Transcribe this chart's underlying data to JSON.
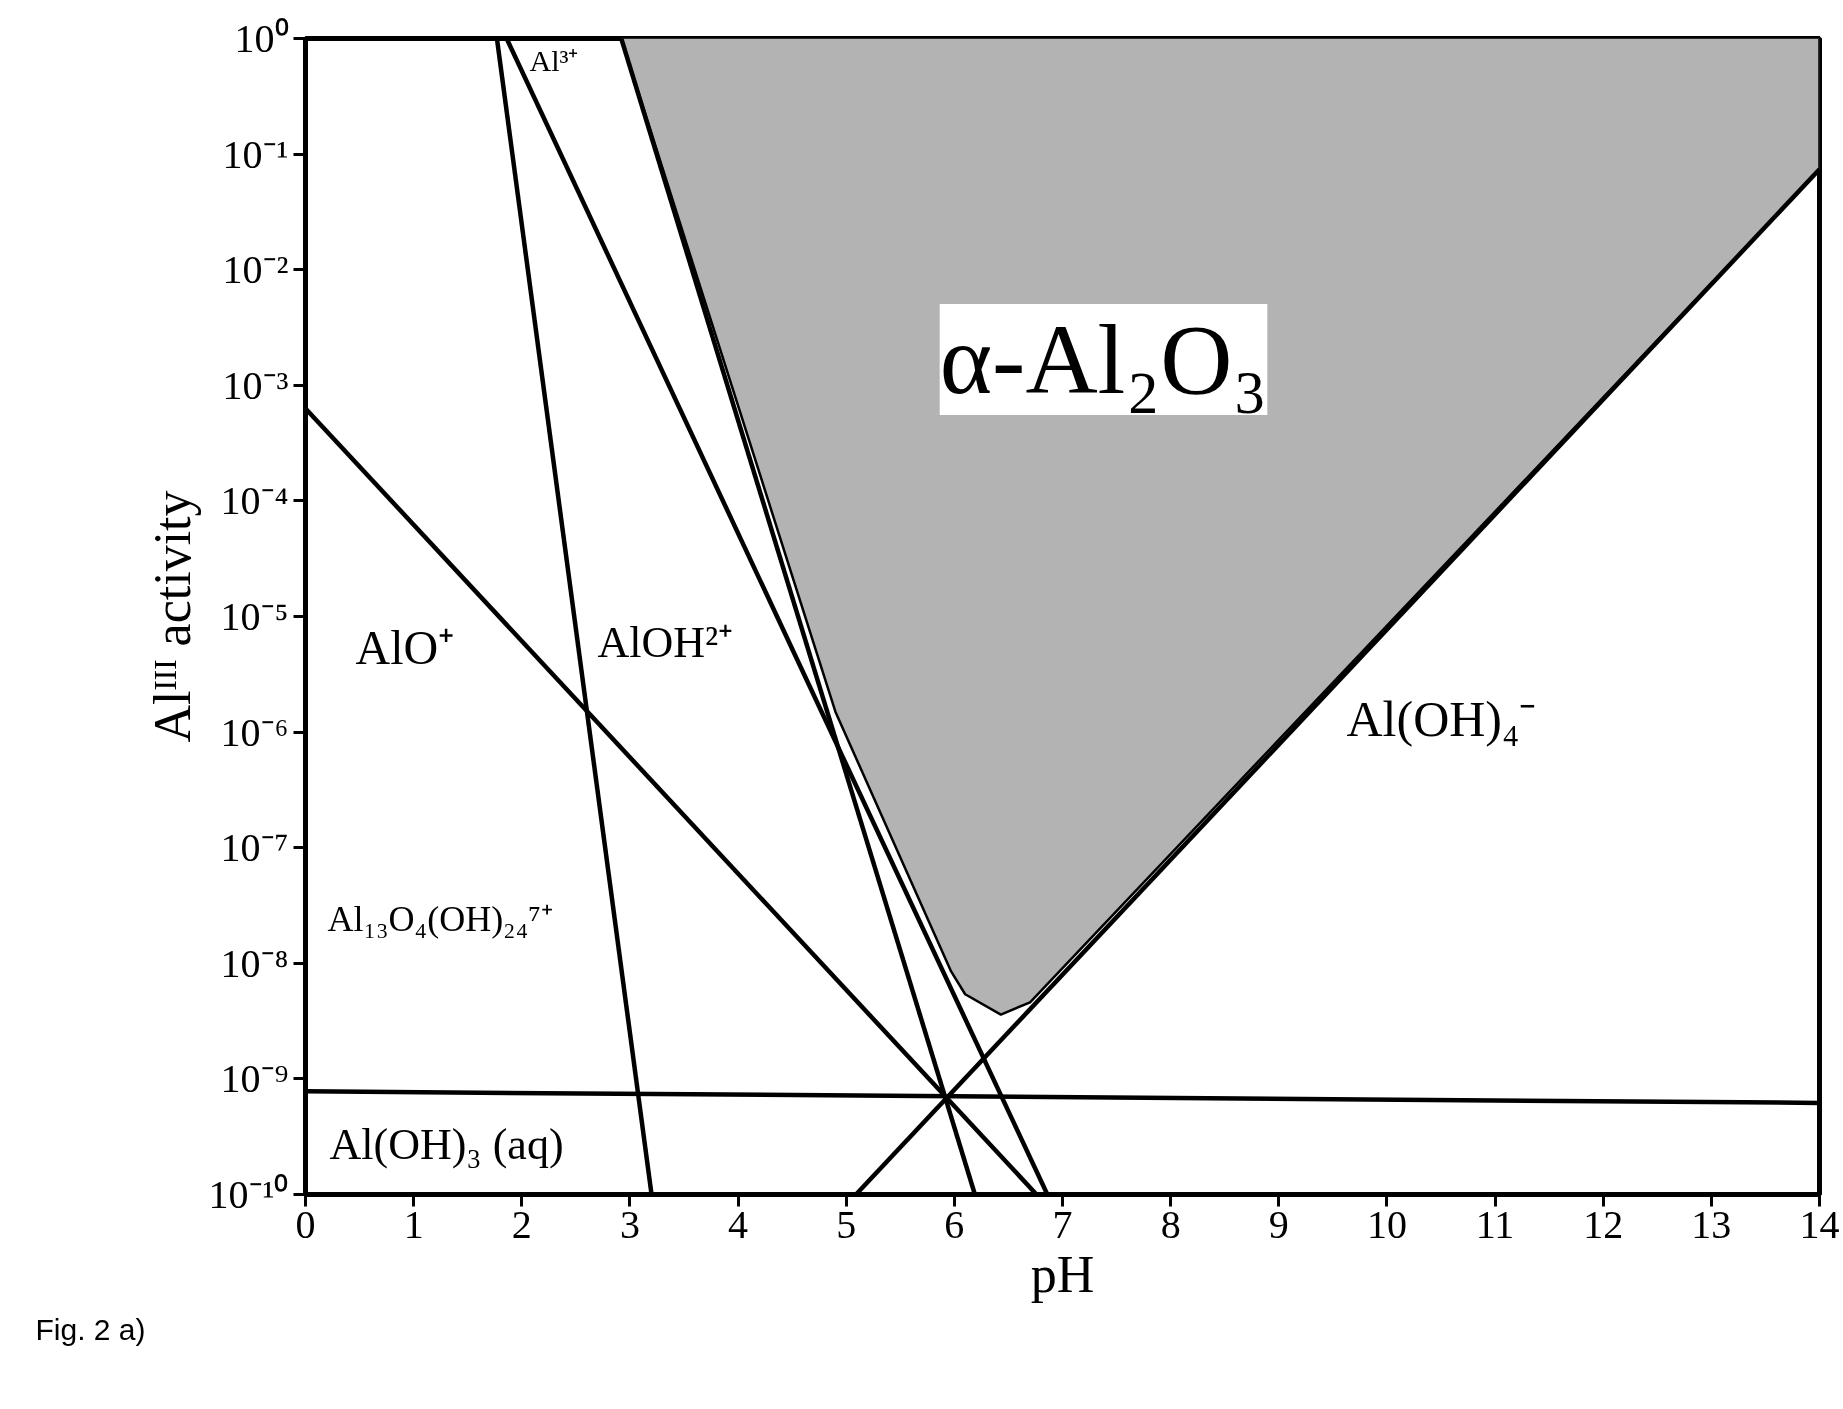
{
  "chart_data": {
    "type": "line",
    "xlabel": "pH",
    "ylabel": "Alᴵᴵᴵ activity",
    "log": "y",
    "grid": false,
    "marker": "none",
    "line_style": "solid",
    "xlim": [
      0,
      14
    ],
    "ylim": [
      1e-10,
      1
    ],
    "xticks": [
      0,
      1,
      2,
      3,
      4,
      5,
      6,
      7,
      8,
      9,
      10,
      11,
      12,
      13,
      14
    ],
    "yticks": [
      {
        "value": 1e-10,
        "label": "10⁻¹⁰"
      },
      {
        "value": 1e-09,
        "label": "10⁻⁹"
      },
      {
        "value": 1e-08,
        "label": "10⁻⁸"
      },
      {
        "value": 1e-07,
        "label": "10⁻⁷"
      },
      {
        "value": 1e-06,
        "label": "10⁻⁶"
      },
      {
        "value": 1e-05,
        "label": "10⁻⁵"
      },
      {
        "value": 0.0001,
        "label": "10⁻⁴"
      },
      {
        "value": 0.001,
        "label": "10⁻³"
      },
      {
        "value": 0.01,
        "label": "10⁻²"
      },
      {
        "value": 0.1,
        "label": "10⁻¹"
      },
      {
        "value": 1,
        "label": "10⁰"
      }
    ],
    "series": [
      {
        "type": "area",
        "color": "#b3b3b3",
        "x": [
          2.92,
          4.9,
          5.97,
          6.1,
          6.43,
          6.7,
          14,
          14
        ],
        "values": [
          1,
          1.5e-06,
          8.5e-09,
          5.4e-09,
          3.6e-09,
          4.6e-09,
          0.074,
          1
        ]
      },
      {
        "color": "#000000",
        "x": [
          0,
          6.76
        ],
        "values": [
          0.00063,
          1e-10
        ]
      },
      {
        "color": "#000000",
        "x": [
          1.77,
          3.2
        ],
        "values": [
          1,
          1e-10
        ]
      },
      {
        "color": "#000000",
        "x": [
          1.86,
          6.86
        ],
        "values": [
          1,
          1e-10
        ]
      },
      {
        "color": "#000000",
        "x": [
          2.92,
          6.19
        ],
        "values": [
          1,
          1e-10
        ]
      },
      {
        "color": "#000000",
        "x": [
          5.09,
          14
        ],
        "values": [
          1e-10,
          0.074
        ]
      },
      {
        "color": "#000000",
        "x": [
          0,
          14
        ],
        "values": [
          7.8e-10,
          6.2e-10
        ]
      }
    ],
    "annotations": [
      "α-Al₂O₃",
      "Al³⁺",
      "AlOH²⁺",
      "AlO⁺",
      "Al₁₃O₄(OH)₂₄⁷⁺",
      "Al(OH)₃ (aq)",
      "Al(OH)₄⁻",
      "Fig. 2 a)"
    ]
  }
}
